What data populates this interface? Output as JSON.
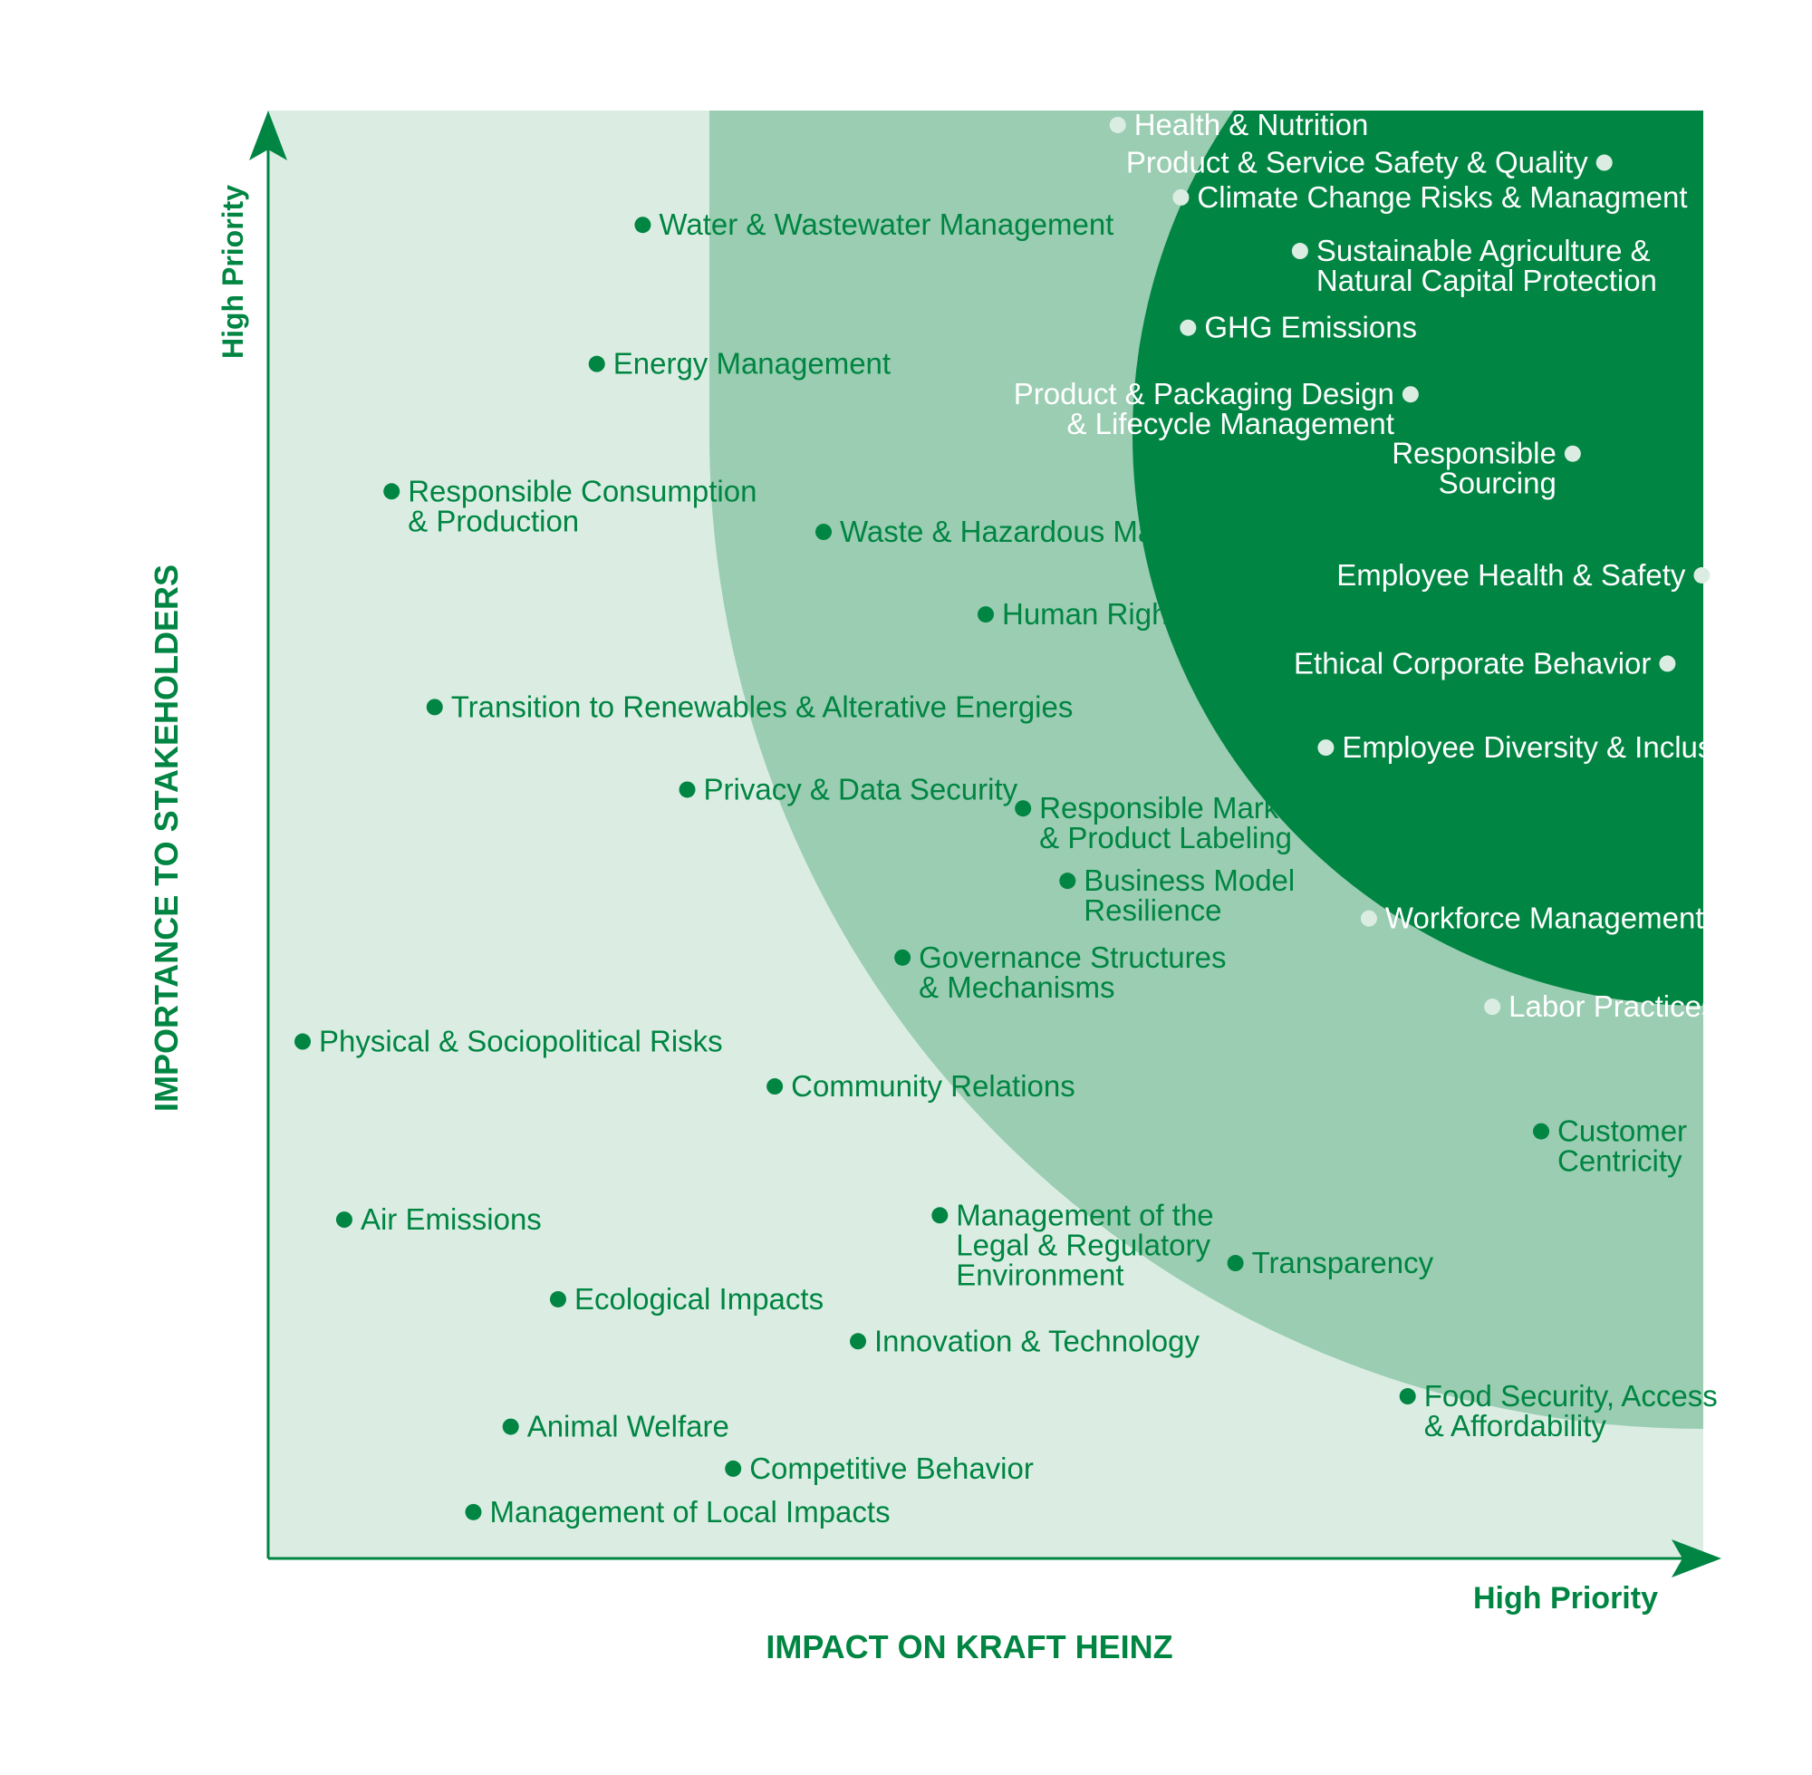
{
  "chart_data": {
    "type": "scatter",
    "title": "",
    "xlabel": "IMPACT ON KRAFT HEINZ",
    "ylabel": "IMPORTANCE TO STAKEHOLDERS",
    "x_end_label": "High Priority",
    "y_end_label": "High Priority",
    "xlim": [
      0,
      100
    ],
    "ylim": [
      0,
      100
    ],
    "grid": false,
    "zones": [
      {
        "name": "low",
        "color": "#dbede3"
      },
      {
        "name": "medium",
        "color": "#9acdb2"
      },
      {
        "name": "high",
        "color": "#008542"
      }
    ],
    "colors": {
      "axis": "#008542",
      "marker_dark": "#008542",
      "marker_light": "#dbede3",
      "text_dark": "#008542",
      "text_light": "#ffffff"
    },
    "points": [
      {
        "lines": [
          "Health & Nutrition"
        ],
        "x": 59.2,
        "y": 99.0,
        "tone": "light",
        "side": "right"
      },
      {
        "lines": [
          "Product & Service Safety & Quality"
        ],
        "x": 93.1,
        "y": 96.4,
        "tone": "light",
        "side": "left"
      },
      {
        "lines": [
          "Climate Change Risks & Managment"
        ],
        "x": 63.6,
        "y": 94.0,
        "tone": "light",
        "side": "right"
      },
      {
        "lines": [
          "Sustainable Agriculture &",
          "Natural Capital Protection"
        ],
        "x": 71.9,
        "y": 90.3,
        "tone": "light",
        "side": "right"
      },
      {
        "lines": [
          "GHG Emissions"
        ],
        "x": 64.1,
        "y": 85.0,
        "tone": "light",
        "side": "right"
      },
      {
        "lines": [
          "Product & Packaging Design",
          "& Lifecycle Management"
        ],
        "x": 79.6,
        "y": 80.4,
        "tone": "light",
        "side": "left"
      },
      {
        "lines": [
          "Responsible",
          "Sourcing"
        ],
        "x": 90.9,
        "y": 76.3,
        "tone": "light",
        "side": "left"
      },
      {
        "lines": [
          "Employee Health & Safety"
        ],
        "x": 99.9,
        "y": 67.9,
        "tone": "light",
        "side": "left"
      },
      {
        "lines": [
          "Ethical Corporate Behavior"
        ],
        "x": 97.5,
        "y": 61.8,
        "tone": "light",
        "side": "left"
      },
      {
        "lines": [
          "Employee Diversity & Inclusion"
        ],
        "x": 73.7,
        "y": 56.0,
        "tone": "light",
        "side": "right"
      },
      {
        "lines": [
          "Workforce Management"
        ],
        "x": 76.7,
        "y": 44.2,
        "tone": "light",
        "side": "right"
      },
      {
        "lines": [
          "Labor Practices"
        ],
        "x": 85.3,
        "y": 38.1,
        "tone": "light",
        "side": "right"
      },
      {
        "lines": [
          "Water & Wastewater Management"
        ],
        "x": 26.1,
        "y": 92.1,
        "tone": "dark",
        "side": "right"
      },
      {
        "lines": [
          "Energy Management"
        ],
        "x": 22.9,
        "y": 82.5,
        "tone": "dark",
        "side": "right"
      },
      {
        "lines": [
          "Responsible Consumption",
          "& Production"
        ],
        "x": 8.6,
        "y": 73.7,
        "tone": "dark",
        "side": "right"
      },
      {
        "lines": [
          "Waste & Hazardous Materials"
        ],
        "x": 38.7,
        "y": 70.9,
        "tone": "dark",
        "side": "right"
      },
      {
        "lines": [
          "Human Rights"
        ],
        "x": 50.0,
        "y": 65.2,
        "tone": "dark",
        "side": "right"
      },
      {
        "lines": [
          "Transition to Renewables & Alterative Energies"
        ],
        "x": 11.6,
        "y": 58.8,
        "tone": "dark",
        "side": "right"
      },
      {
        "lines": [
          "Privacy & Data Security"
        ],
        "x": 29.2,
        "y": 53.1,
        "tone": "dark",
        "side": "right"
      },
      {
        "lines": [
          "Responsible Marketing",
          "& Product Labeling"
        ],
        "x": 52.6,
        "y": 51.8,
        "tone": "dark",
        "side": "right"
      },
      {
        "lines": [
          "Business Model",
          "Resilience"
        ],
        "x": 55.7,
        "y": 46.8,
        "tone": "dark",
        "side": "right"
      },
      {
        "lines": [
          "Governance Structures",
          "& Mechanisms"
        ],
        "x": 44.2,
        "y": 41.5,
        "tone": "dark",
        "side": "right"
      },
      {
        "lines": [
          "Physical & Sociopolitical Risks"
        ],
        "x": 2.4,
        "y": 35.7,
        "tone": "dark",
        "side": "right"
      },
      {
        "lines": [
          "Community Relations"
        ],
        "x": 35.3,
        "y": 32.6,
        "tone": "dark",
        "side": "right"
      },
      {
        "lines": [
          "Customer",
          "Centricity"
        ],
        "x": 88.7,
        "y": 29.5,
        "tone": "dark",
        "side": "right"
      },
      {
        "lines": [
          "Air Emissions"
        ],
        "x": 5.3,
        "y": 23.4,
        "tone": "dark",
        "side": "right"
      },
      {
        "lines": [
          "Management of the",
          "Legal & Regulatory",
          "Environment"
        ],
        "x": 46.8,
        "y": 23.7,
        "tone": "dark",
        "side": "right"
      },
      {
        "lines": [
          "Transparency"
        ],
        "x": 67.4,
        "y": 20.4,
        "tone": "dark",
        "side": "right"
      },
      {
        "lines": [
          "Ecological Impacts"
        ],
        "x": 20.2,
        "y": 17.9,
        "tone": "dark",
        "side": "right"
      },
      {
        "lines": [
          "Innovation & Technology"
        ],
        "x": 41.1,
        "y": 15.0,
        "tone": "dark",
        "side": "right"
      },
      {
        "lines": [
          "Food Security, Access",
          "& Affordability"
        ],
        "x": 79.4,
        "y": 11.2,
        "tone": "dark",
        "side": "right"
      },
      {
        "lines": [
          "Animal Welfare"
        ],
        "x": 16.9,
        "y": 9.1,
        "tone": "dark",
        "side": "right"
      },
      {
        "lines": [
          "Competitive Behavior"
        ],
        "x": 32.4,
        "y": 6.2,
        "tone": "dark",
        "side": "right"
      },
      {
        "lines": [
          "Management of Local Impacts"
        ],
        "x": 14.3,
        "y": 3.2,
        "tone": "dark",
        "side": "right"
      }
    ]
  }
}
